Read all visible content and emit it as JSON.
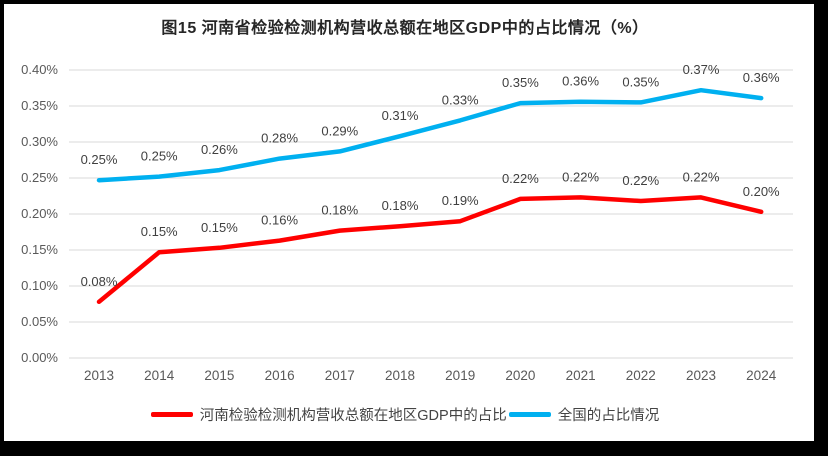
{
  "frame": {
    "border_color": "#000000",
    "background": "#ffffff"
  },
  "chart_data": {
    "type": "line",
    "title": "图15  河南省检验检测机构营收总额在地区GDP中的占比情况（%）",
    "xlabel": "",
    "ylabel": "",
    "categories": [
      "2013",
      "2014",
      "2015",
      "2016",
      "2017",
      "2018",
      "2019",
      "2020",
      "2021",
      "2022",
      "2023",
      "2024"
    ],
    "y_ticks": [
      "0.00%",
      "0.05%",
      "0.10%",
      "0.15%",
      "0.20%",
      "0.25%",
      "0.30%",
      "0.35%",
      "0.40%"
    ],
    "ylim": [
      0.0,
      0.4
    ],
    "grid": true,
    "legend_position": "bottom",
    "grid_color": "#D9D9D9",
    "axis_text_color": "#595959",
    "data_label_color": "#404040",
    "series": [
      {
        "name": "河南检验检测机构营收总额在地区GDP中的占比",
        "color": "#FF0000",
        "values": [
          0.078,
          0.147,
          0.153,
          0.163,
          0.177,
          0.183,
          0.19,
          0.221,
          0.223,
          0.218,
          0.223,
          0.203
        ],
        "labels": [
          "0.08%",
          "0.15%",
          "0.15%",
          "0.16%",
          "0.18%",
          "0.18%",
          "0.19%",
          "0.22%",
          "0.22%",
          "0.22%",
          "0.22%",
          "0.20%"
        ]
      },
      {
        "name": "全国的占比情况",
        "color": "#00B0F0",
        "values": [
          0.247,
          0.252,
          0.261,
          0.277,
          0.287,
          0.308,
          0.33,
          0.354,
          0.356,
          0.355,
          0.372,
          0.361
        ],
        "labels": [
          "0.25%",
          "0.25%",
          "0.26%",
          "0.28%",
          "0.29%",
          "0.31%",
          "0.33%",
          "0.35%",
          "0.36%",
          "0.35%",
          "0.37%",
          "0.36%"
        ]
      }
    ]
  }
}
